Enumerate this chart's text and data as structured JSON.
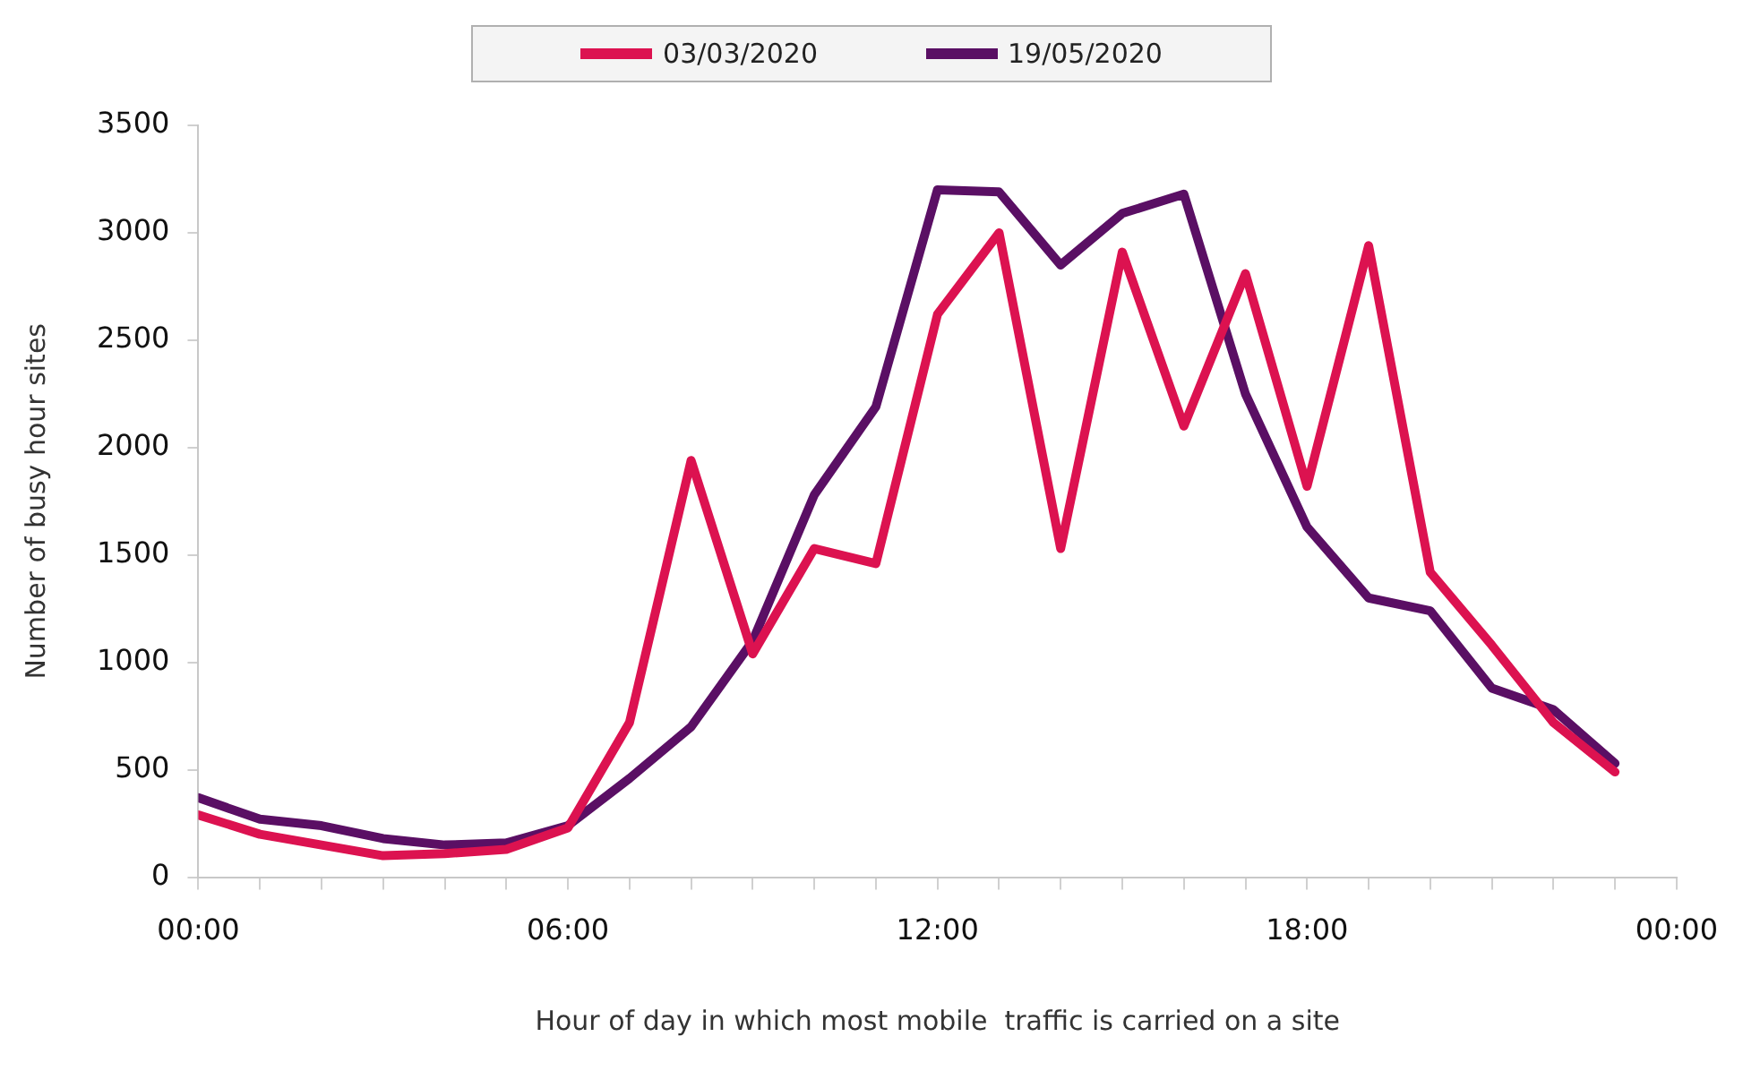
{
  "chart_data": {
    "type": "line",
    "xlabel": "Hour of day in which most mobile  traffic is carried on a site",
    "ylabel": "Number of busy hour sites",
    "x": [
      0,
      1,
      2,
      3,
      4,
      5,
      6,
      7,
      8,
      9,
      10,
      11,
      12,
      13,
      14,
      15,
      16,
      17,
      18,
      19,
      20,
      21,
      22,
      23
    ],
    "series": [
      {
        "name": "03/03/2020",
        "color": "#dc1250",
        "values": [
          290,
          200,
          150,
          100,
          110,
          130,
          230,
          720,
          1940,
          1040,
          1530,
          1460,
          2620,
          3000,
          1530,
          2910,
          2100,
          2810,
          1820,
          2940,
          1420,
          1080,
          720,
          490
        ]
      },
      {
        "name": "19/05/2020",
        "color": "#5a0f64",
        "values": [
          370,
          270,
          240,
          180,
          150,
          160,
          240,
          460,
          700,
          1100,
          1780,
          2190,
          3200,
          3190,
          2850,
          3090,
          3180,
          2250,
          1630,
          1300,
          1240,
          880,
          780,
          530
        ]
      }
    ],
    "xlim": [
      0,
      24
    ],
    "xticks": [
      {
        "value": 0,
        "label": "00:00"
      },
      {
        "value": 1,
        "label": null
      },
      {
        "value": 2,
        "label": null
      },
      {
        "value": 3,
        "label": null
      },
      {
        "value": 4,
        "label": null
      },
      {
        "value": 5,
        "label": null
      },
      {
        "value": 6,
        "label": "06:00"
      },
      {
        "value": 7,
        "label": null
      },
      {
        "value": 8,
        "label": null
      },
      {
        "value": 9,
        "label": null
      },
      {
        "value": 10,
        "label": null
      },
      {
        "value": 11,
        "label": null
      },
      {
        "value": 12,
        "label": "12:00"
      },
      {
        "value": 13,
        "label": null
      },
      {
        "value": 14,
        "label": null
      },
      {
        "value": 15,
        "label": null
      },
      {
        "value": 16,
        "label": null
      },
      {
        "value": 17,
        "label": null
      },
      {
        "value": 18,
        "label": "18:00"
      },
      {
        "value": 19,
        "label": null
      },
      {
        "value": 20,
        "label": null
      },
      {
        "value": 21,
        "label": null
      },
      {
        "value": 22,
        "label": null
      },
      {
        "value": 23,
        "label": null
      },
      {
        "value": 24,
        "label": "00:00"
      }
    ],
    "ylim": [
      0,
      3500
    ],
    "yticks": [
      0,
      500,
      1000,
      1500,
      2000,
      2500,
      3000,
      3500
    ],
    "grid": false,
    "legend": "top",
    "marker": "none",
    "line_style": "solid"
  }
}
